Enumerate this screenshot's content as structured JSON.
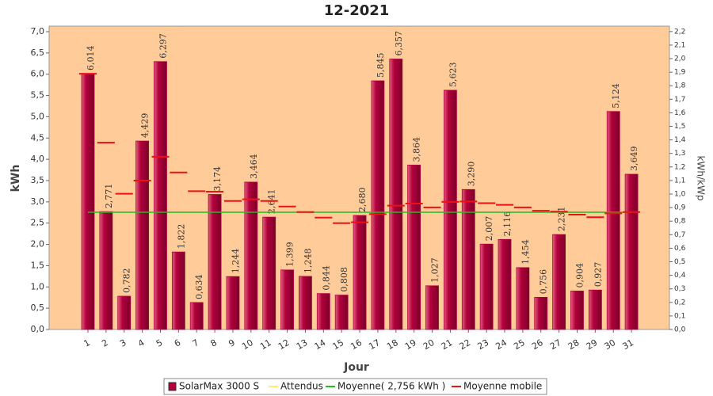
{
  "chart_data": {
    "type": "bar",
    "title": "12-2021",
    "x_label": "Jour",
    "y_label": "kWh",
    "y2_label": "kWh/kWp",
    "categories": [
      "1",
      "2",
      "3",
      "4",
      "5",
      "6",
      "7",
      "8",
      "9",
      "10",
      "11",
      "12",
      "13",
      "14",
      "15",
      "16",
      "17",
      "18",
      "19",
      "20",
      "21",
      "22",
      "23",
      "24",
      "25",
      "26",
      "27",
      "28",
      "29",
      "30",
      "31"
    ],
    "series": [
      {
        "name": "SolarMax 3000 S",
        "color": "#b3003c",
        "type": "bar",
        "values": [
          6.014,
          2.771,
          0.782,
          4.429,
          6.297,
          1.822,
          0.634,
          3.174,
          1.244,
          3.464,
          2.641,
          1.399,
          1.248,
          0.844,
          0.808,
          2.68,
          5.845,
          6.357,
          3.864,
          1.027,
          5.623,
          3.29,
          2.007,
          2.116,
          1.454,
          0.756,
          2.231,
          0.904,
          0.927,
          5.124,
          3.649
        ],
        "value_labels": [
          "6,014",
          "2,771",
          "0,782",
          "4,429",
          "6,297",
          "1,822",
          "0,634",
          "3,174",
          "1,244",
          "3,464",
          "2,641",
          "1,399",
          "1,248",
          "0,844",
          "0,808",
          "2,680",
          "5,845",
          "6,357",
          "3,864",
          "1,027",
          "5,623",
          "3,290",
          "2,007",
          "2,116",
          "1,454",
          "0,756",
          "2,231",
          "0,904",
          "0,927",
          "5,124",
          "3,649"
        ]
      },
      {
        "name": "Attendus",
        "color": "#ffee66",
        "type": "line",
        "values": [
          null,
          null,
          null,
          null,
          null,
          null,
          null,
          null,
          null,
          null,
          null,
          null,
          null,
          null,
          null,
          null,
          null,
          null,
          null,
          null,
          null,
          null,
          null,
          null,
          null,
          null,
          null,
          null,
          null,
          null,
          null
        ]
      },
      {
        "name": "Moyenne( 2,756 kWh )",
        "color": "#22bb22",
        "type": "line",
        "values": [
          2.756,
          2.756,
          2.756,
          2.756,
          2.756,
          2.756,
          2.756,
          2.756,
          2.756,
          2.756,
          2.756,
          2.756,
          2.756,
          2.756,
          2.756,
          2.756,
          2.756,
          2.756,
          2.756,
          2.756,
          2.756,
          2.756,
          2.756,
          2.756,
          2.756,
          2.756,
          2.756,
          2.756,
          2.756,
          2.756,
          2.756
        ]
      },
      {
        "name": "Moyenne mobile",
        "color": "#ee1111",
        "type": "dash",
        "values": [
          6.01,
          4.39,
          3.19,
          3.5,
          4.06,
          3.69,
          3.25,
          3.24,
          3.02,
          3.06,
          3.02,
          2.89,
          2.76,
          2.63,
          2.5,
          2.52,
          2.71,
          2.91,
          2.96,
          2.87,
          3.0,
          3.01,
          2.97,
          2.93,
          2.87,
          2.79,
          2.77,
          2.7,
          2.64,
          2.73,
          2.76
        ]
      }
    ],
    "ylim": [
      0,
      7.13
    ],
    "yticks": [
      {
        "value": 0,
        "label": "0,0"
      },
      {
        "value": 0.5,
        "label": "0,5"
      },
      {
        "value": 1,
        "label": "1,0"
      },
      {
        "value": 1.5,
        "label": "1,5"
      },
      {
        "value": 2,
        "label": "2,0"
      },
      {
        "value": 2.5,
        "label": "2,5"
      },
      {
        "value": 3,
        "label": "3,0"
      },
      {
        "value": 3.5,
        "label": "3,5"
      },
      {
        "value": 4,
        "label": "4,0"
      },
      {
        "value": 4.5,
        "label": "4,5"
      },
      {
        "value": 5,
        "label": "5,0"
      },
      {
        "value": 5.5,
        "label": "5,5"
      },
      {
        "value": 6,
        "label": "6,0"
      },
      {
        "value": 6.5,
        "label": "6,5"
      },
      {
        "value": 7,
        "label": "7,0"
      }
    ],
    "y2lim": [
      0,
      2.24
    ],
    "y2ticks": [
      {
        "value": 0,
        "label": "0,0"
      },
      {
        "value": 0.1,
        "label": "0,1"
      },
      {
        "value": 0.2,
        "label": "0,2"
      },
      {
        "value": 0.3,
        "label": "0,3"
      },
      {
        "value": 0.4,
        "label": "0,4"
      },
      {
        "value": 0.5,
        "label": "0,5"
      },
      {
        "value": 0.6,
        "label": "0,6"
      },
      {
        "value": 0.7,
        "label": "0,7"
      },
      {
        "value": 0.8,
        "label": "0,8"
      },
      {
        "value": 0.9,
        "label": "0,9"
      },
      {
        "value": 1.0,
        "label": "1,0"
      },
      {
        "value": 1.1,
        "label": "1,1"
      },
      {
        "value": 1.2,
        "label": "1,2"
      },
      {
        "value": 1.3,
        "label": "1,3"
      },
      {
        "value": 1.4,
        "label": "1,4"
      },
      {
        "value": 1.5,
        "label": "1,5"
      },
      {
        "value": 1.6,
        "label": "1,6"
      },
      {
        "value": 1.7,
        "label": "1,7"
      },
      {
        "value": 1.8,
        "label": "1,8"
      },
      {
        "value": 1.9,
        "label": "1,9"
      },
      {
        "value": 2.0,
        "label": "2,0"
      },
      {
        "value": 2.1,
        "label": "2,1"
      },
      {
        "value": 2.2,
        "label": "2,2"
      }
    ],
    "plot_background": "#ffcc99",
    "legend": "bottom"
  }
}
